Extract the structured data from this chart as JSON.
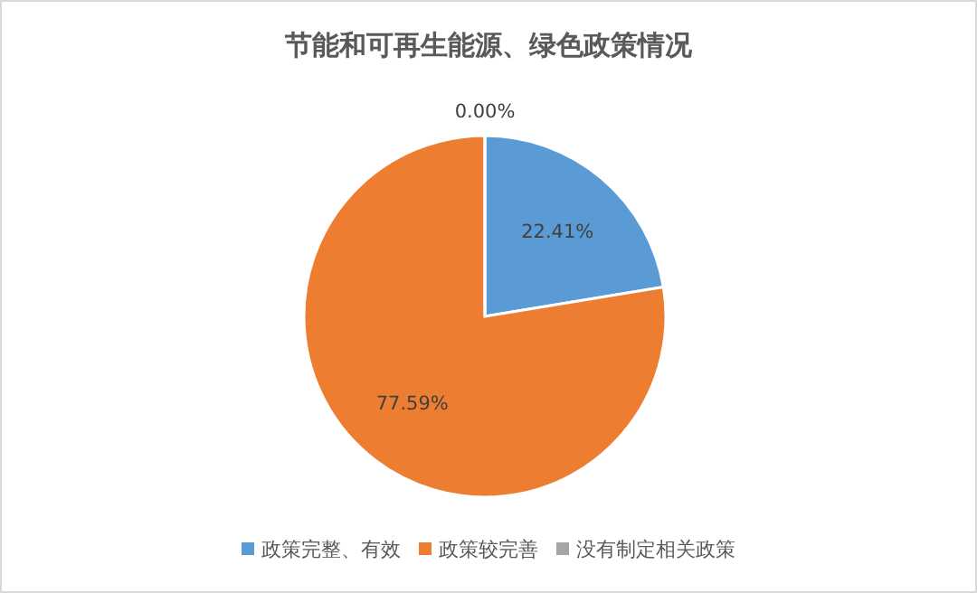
{
  "chart_data": {
    "type": "pie",
    "title": "节能和可再生能源、绿色政策情况",
    "categories": [
      "政策完整、有效",
      "政策较完善",
      "没有制定相关政策"
    ],
    "values": [
      22.41,
      77.59,
      0.0
    ],
    "colors": [
      "#5b9bd5",
      "#ed7d31",
      "#a5a5a5"
    ],
    "value_labels": [
      "22.41%",
      "77.59%",
      "0.00%"
    ],
    "legend": "bottom"
  }
}
